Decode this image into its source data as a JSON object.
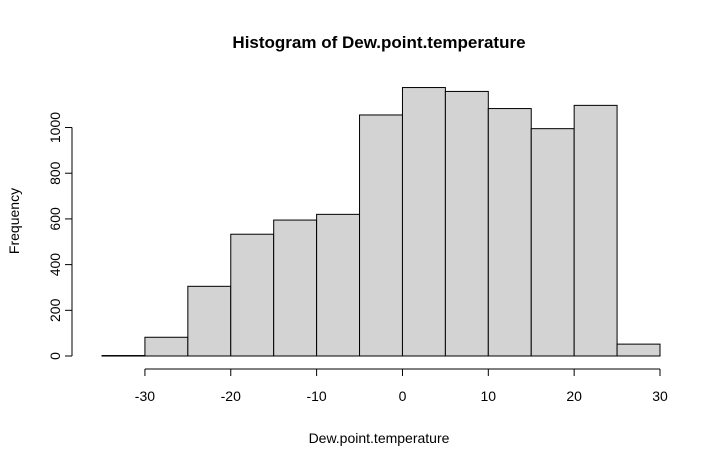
{
  "chart_data": {
    "type": "bar",
    "title": "Histogram of Dew.point.temperature",
    "xlabel": "Dew.point.temperature",
    "ylabel": "Frequency",
    "xlim": [
      -35,
      30
    ],
    "ylim": [
      0,
      1180
    ],
    "x_ticks": [
      -30,
      -20,
      -10,
      0,
      10,
      20,
      30
    ],
    "y_ticks": [
      0,
      200,
      400,
      600,
      800,
      1000
    ],
    "bins": [
      {
        "from": -35,
        "to": -30,
        "value": 2
      },
      {
        "from": -30,
        "to": -25,
        "value": 82
      },
      {
        "from": -25,
        "to": -20,
        "value": 305
      },
      {
        "from": -20,
        "to": -15,
        "value": 533
      },
      {
        "from": -15,
        "to": -10,
        "value": 595
      },
      {
        "from": -10,
        "to": -5,
        "value": 620
      },
      {
        "from": -5,
        "to": 0,
        "value": 1055
      },
      {
        "from": 0,
        "to": 5,
        "value": 1175
      },
      {
        "from": 5,
        "to": 10,
        "value": 1158
      },
      {
        "from": 10,
        "to": 15,
        "value": 1083
      },
      {
        "from": 15,
        "to": 20,
        "value": 995
      },
      {
        "from": 20,
        "to": 25,
        "value": 1097
      },
      {
        "from": 25,
        "to": 30,
        "value": 52
      }
    ],
    "bar_color": "#d3d3d3",
    "edge_color": "#000000",
    "grid": false,
    "legend": "none"
  }
}
